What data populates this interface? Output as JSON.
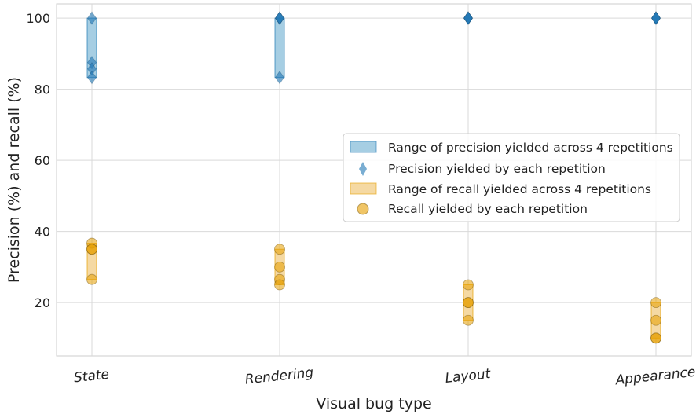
{
  "chart_data": {
    "type": "scatter",
    "xlabel": "Visual bug type",
    "ylabel": "Precision (%) and recall (%)",
    "categories": [
      "State",
      "Rendering",
      "Layout",
      "Appearance"
    ],
    "ylim": [
      5,
      104
    ],
    "yticks": [
      20,
      40,
      60,
      80,
      100
    ],
    "grid": true,
    "legend_position": "center-right",
    "colors": {
      "precision": "#1f77b4",
      "precision_range_fill": "#a6cee3",
      "recall": "#e69f00",
      "recall_range_fill": "#f5d9a3"
    },
    "series": [
      {
        "name": "Precision yielded by each repetition",
        "range_name": "Range of precision yielded across 4 repetitions",
        "values": [
          [
            100,
            87.5,
            85.7,
            83.3
          ],
          [
            100,
            100,
            100,
            83.3
          ],
          [
            100,
            100,
            100,
            100
          ],
          [
            100,
            100,
            100,
            100
          ]
        ]
      },
      {
        "name": "Recall yielded by each repetition",
        "range_name": "Range of recall yielded across 4 repetitions",
        "values": [
          [
            36.7,
            35,
            35,
            26.5
          ],
          [
            35,
            30,
            26.5,
            25
          ],
          [
            25,
            20,
            20,
            15
          ],
          [
            20,
            15,
            10,
            10
          ]
        ]
      }
    ]
  }
}
